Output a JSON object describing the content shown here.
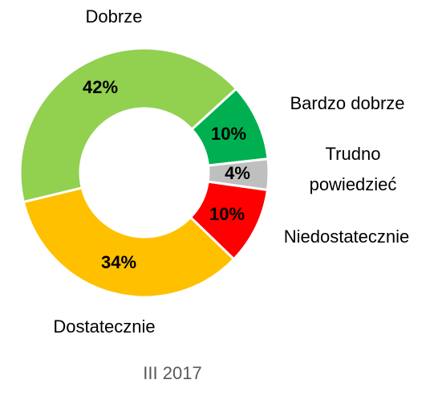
{
  "chart_data": {
    "type": "donut",
    "subtitle": "III 2017",
    "categories": [
      "Bardzo dobrze",
      "Trudno powiedzieć",
      "Niedostatecznie",
      "Dostatecznie",
      "Dobrze"
    ],
    "values": [
      10,
      4,
      10,
      34,
      42
    ],
    "value_labels": [
      "10%",
      "4%",
      "10%",
      "34%",
      "42%"
    ],
    "colors": [
      "#00b050",
      "#bfbfbf",
      "#ff0000",
      "#ffc000",
      "#92d050"
    ]
  }
}
